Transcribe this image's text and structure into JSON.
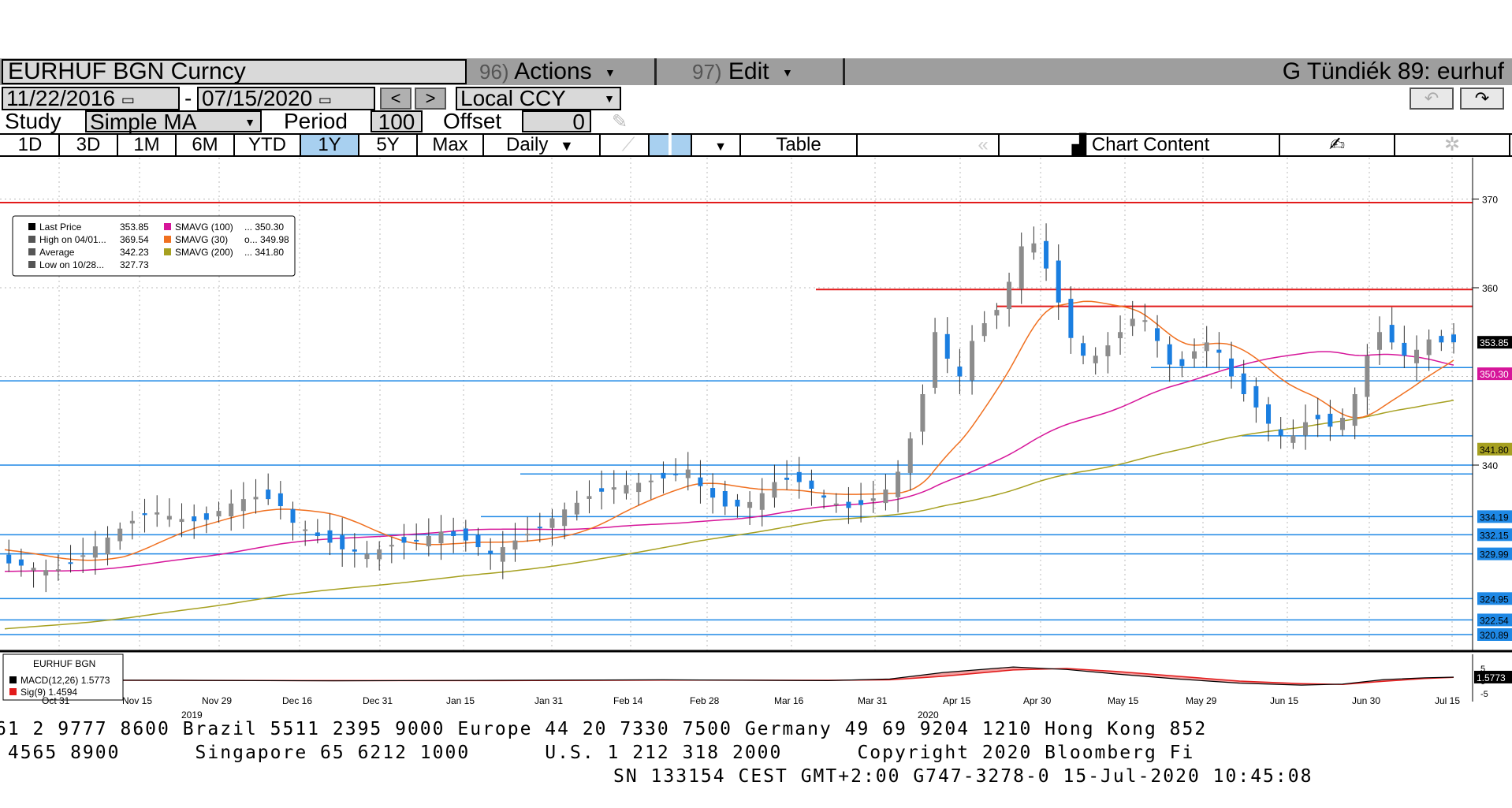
{
  "header": {
    "ticker": "EURHUF BGN Curncy",
    "actions_num": "96)",
    "actions_label": "Actions",
    "edit_num": "97)",
    "edit_label": "Edit",
    "user_label": "G Tündiék 89: eurhuf"
  },
  "range": {
    "start_date": "11/22/2016",
    "end_date": "07/15/2020",
    "dash": "-",
    "prev": "<",
    "next": ">",
    "currency": "Local CCY"
  },
  "study": {
    "label": "Study",
    "value": "Simple MA",
    "period_label": "Period",
    "period_value": "100",
    "offset_label": "Offset",
    "offset_value": "0"
  },
  "tabs": {
    "items": [
      "1D",
      "3D",
      "1M",
      "6M",
      "YTD",
      "1Y",
      "5Y",
      "Max"
    ],
    "selected": "1Y",
    "frequency": "Daily",
    "table": "Table",
    "chart_content": "Chart Content"
  },
  "legend": {
    "rows": [
      {
        "label": "Last Price",
        "value": "353.85",
        "color": "#000000"
      },
      {
        "label": "High on 04/01...",
        "value": "369.54",
        "color": "#555555"
      },
      {
        "label": "Average",
        "value": "342.23",
        "color": "#555555"
      },
      {
        "label": "Low on 10/28...",
        "value": "327.73",
        "color": "#555555"
      }
    ],
    "rows2": [
      {
        "label": "SMAVG (100)",
        "value": "... 350.30",
        "color": "#d6169a"
      },
      {
        "label": "SMAVG (30)",
        "value": "o... 349.98",
        "color": "#f07020"
      },
      {
        "label": "SMAVG (200)",
        "value": "... 341.80",
        "color": "#a6a020"
      }
    ]
  },
  "macd": {
    "title": "EURHUF BGN",
    "macd_label": "MACD(12,26)",
    "macd_value": "1.5773",
    "sig_label": "Sig(9)",
    "sig_value": "1.4594",
    "axis_top": "5",
    "axis_mid": "0",
    "axis_bot": "-5",
    "tag": "1.5773"
  },
  "xaxis": {
    "labels": [
      "Oct 31",
      "Nov 15",
      "Nov 29",
      "Dec 16",
      "Dec 31",
      "Jan 15",
      "Jan 31",
      "Feb 14",
      "Feb 28",
      "Mar 16",
      "Mar 31",
      "Apr 15",
      "Apr 30",
      "May 15",
      "May 29",
      "Jun 15",
      "Jun 30",
      "Jul 15"
    ],
    "year_2019": "2019",
    "year_2020": "2020"
  },
  "footer": {
    "line1": "61 2 9777 8600 Brazil 5511 2395 9000 Europe 44 20 7330 7500 Germany 49 69 9204 1210 Hong Kong 852",
    "line2": " 4565 8900      Singapore 65 6212 1000      U.S. 1 212 318 2000      Copyright 2020 Bloomberg Fi",
    "line3": "SN 133154 CEST GMT+2:00 G747-3278-0 15-Jul-2020 10:45:08"
  },
  "colors": {
    "up_candle": "#8c8c8c",
    "down_candle": "#1a7ee0",
    "resistance": "#e21b1b",
    "support": "#1e88e5",
    "sma100": "#d6169a",
    "sma30": "#f07020",
    "sma200": "#a6a020"
  },
  "chart_data": {
    "type": "candlestick",
    "title": "EURHUF BGN Curncy",
    "period": "1Y",
    "frequency": "Daily",
    "ylim": [
      320,
      372
    ],
    "y_ticks": [
      340,
      360,
      370
    ],
    "price_tags": {
      "last_price": "353.85",
      "sma100": "350.30",
      "sma200": "341.80",
      "levels": [
        "334.19",
        "332.15",
        "329.99",
        "324.95",
        "322.54",
        "320.89"
      ]
    },
    "horizontal_levels": {
      "red": [
        369.6,
        359.8,
        357.9
      ],
      "blue": [
        351.0,
        349.5,
        343.3,
        340.0,
        339.0,
        334.19,
        332.15,
        329.99,
        324.95,
        322.54,
        320.89
      ]
    },
    "stats": {
      "last": 353.85,
      "high": 369.54,
      "average": 342.23,
      "low": 327.73
    },
    "series": [
      {
        "name": "Last Price",
        "points": [
          [
            0,
            329.0
          ],
          [
            6,
            328.5
          ],
          [
            12,
            328.0
          ],
          [
            18,
            329.5
          ],
          [
            24,
            331.5
          ],
          [
            30,
            333.5
          ],
          [
            36,
            334.8
          ],
          [
            42,
            334.0
          ],
          [
            48,
            333.5
          ],
          [
            54,
            335.5
          ],
          [
            60,
            336.5
          ],
          [
            66,
            336.0
          ],
          [
            70,
            333.5
          ],
          [
            76,
            332.0
          ],
          [
            82,
            330.5
          ],
          [
            88,
            330.0
          ],
          [
            94,
            331.0
          ],
          [
            100,
            331.5
          ],
          [
            106,
            332.5
          ],
          [
            112,
            331.5
          ],
          [
            118,
            330.0
          ],
          [
            124,
            331.5
          ],
          [
            130,
            333.0
          ],
          [
            136,
            335.0
          ],
          [
            142,
            336.5
          ],
          [
            148,
            337.5
          ],
          [
            154,
            338.0
          ],
          [
            160,
            338.5
          ],
          [
            166,
            339.5
          ],
          [
            170,
            337.0
          ],
          [
            176,
            335.0
          ],
          [
            182,
            336.0
          ],
          [
            188,
            338.5
          ],
          [
            194,
            338.0
          ],
          [
            200,
            336.0
          ],
          [
            206,
            335.0
          ],
          [
            212,
            336.5
          ],
          [
            216,
            338.0
          ],
          [
            220,
            343.0
          ],
          [
            223,
            348.0
          ],
          [
            226,
            355.0
          ],
          [
            229,
            352.0
          ],
          [
            232,
            350.0
          ],
          [
            235,
            354.0
          ],
          [
            238,
            356.0
          ],
          [
            242,
            358.0
          ],
          [
            245,
            362.0
          ],
          [
            248,
            366.0
          ],
          [
            251,
            364.5
          ],
          [
            254,
            361.0
          ],
          [
            257,
            357.0
          ],
          [
            260,
            353.0
          ],
          [
            263,
            352.0
          ],
          [
            266,
            352.5
          ],
          [
            269,
            354.0
          ],
          [
            272,
            355.5
          ],
          [
            275,
            357.0
          ],
          [
            278,
            356.0
          ],
          [
            281,
            353.0
          ],
          [
            284,
            350.5
          ],
          [
            287,
            351.5
          ],
          [
            290,
            353.5
          ],
          [
            293,
            354.0
          ],
          [
            296,
            352.0
          ],
          [
            299,
            349.0
          ],
          [
            302,
            347.5
          ],
          [
            305,
            346.0
          ],
          [
            308,
            344.0
          ],
          [
            311,
            343.0
          ],
          [
            314,
            343.5
          ],
          [
            317,
            345.5
          ],
          [
            320,
            345.0
          ],
          [
            323,
            344.0
          ],
          [
            326,
            346.0
          ],
          [
            329,
            349.0
          ],
          [
            332,
            354.0
          ],
          [
            335,
            355.5
          ],
          [
            338,
            353.0
          ],
          [
            341,
            352.0
          ],
          [
            344,
            353.5
          ],
          [
            347,
            354.5
          ],
          [
            350,
            353.5
          ],
          [
            352,
            353.85
          ]
        ]
      }
    ]
  }
}
